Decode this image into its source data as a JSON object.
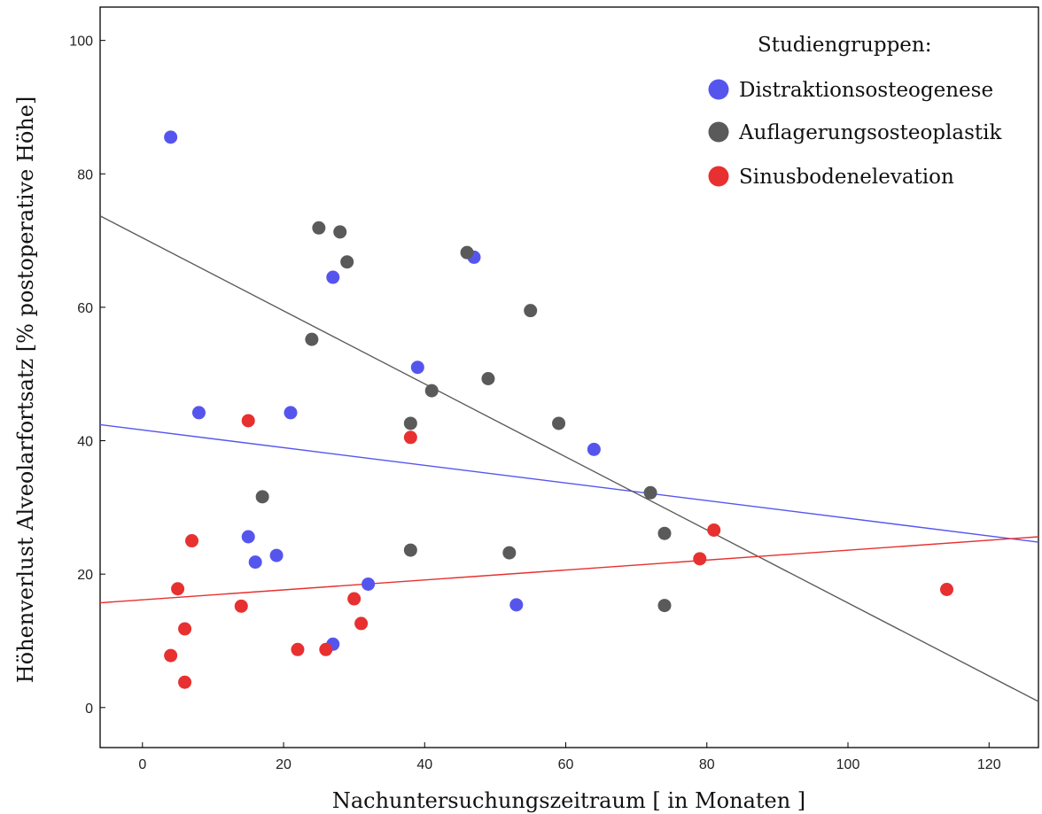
{
  "chart_data": {
    "type": "scatter",
    "title": "",
    "xlabel": "Nachuntersuchungszeitraum [ in Monaten ]",
    "ylabel": "Höhenverlust Alveolarfortsatz [% postoperative Höhe]",
    "xlim": [
      -6,
      127
    ],
    "ylim": [
      -6,
      105
    ],
    "xticks": [
      0,
      20,
      40,
      60,
      80,
      100,
      120
    ],
    "yticks": [
      0,
      20,
      40,
      60,
      80,
      100
    ],
    "xtick_labels": [
      "0",
      "20",
      "40",
      "60",
      "80",
      "100",
      "120"
    ],
    "ytick_labels": [
      "0",
      "20",
      "40",
      "60",
      "80",
      "100"
    ],
    "grid": false,
    "legend": {
      "title": "Studiengruppen:",
      "position": "top-right"
    },
    "series": [
      {
        "name": "Distraktionsosteogenese",
        "color": "#5555ee",
        "points": [
          [
            4,
            85.5
          ],
          [
            8,
            44.2
          ],
          [
            15,
            25.6
          ],
          [
            16,
            21.8
          ],
          [
            19,
            22.8
          ],
          [
            21,
            44.2
          ],
          [
            27,
            64.5
          ],
          [
            27,
            9.5
          ],
          [
            32,
            18.5
          ],
          [
            39,
            51
          ],
          [
            47,
            67.5
          ],
          [
            53,
            15.4
          ],
          [
            64,
            38.7
          ]
        ],
        "fit_line": [
          [
            -6,
            42.4
          ],
          [
            127,
            24.8
          ]
        ]
      },
      {
        "name": "Auflagerungsosteoplastik",
        "color": "#5a5a5a",
        "points": [
          [
            17,
            31.6
          ],
          [
            24,
            55.2
          ],
          [
            25,
            71.9
          ],
          [
            28,
            71.3
          ],
          [
            29,
            66.8
          ],
          [
            38,
            42.6
          ],
          [
            38,
            23.6
          ],
          [
            41,
            47.5
          ],
          [
            46,
            68.2
          ],
          [
            49,
            49.3
          ],
          [
            52,
            23.2
          ],
          [
            55,
            59.5
          ],
          [
            59,
            42.6
          ],
          [
            72,
            32.2
          ],
          [
            74,
            26.1
          ],
          [
            74,
            15.3
          ]
        ],
        "fit_line": [
          [
            -6,
            73.7
          ],
          [
            127,
            0.9
          ]
        ]
      },
      {
        "name": "Sinusbodenelevation",
        "color": "#e83030",
        "points": [
          [
            4,
            7.8
          ],
          [
            5,
            17.8
          ],
          [
            6,
            11.8
          ],
          [
            6,
            3.8
          ],
          [
            7,
            25
          ],
          [
            14,
            15.2
          ],
          [
            15,
            43
          ],
          [
            22,
            8.7
          ],
          [
            26,
            8.7
          ],
          [
            30,
            16.3
          ],
          [
            31,
            12.6
          ],
          [
            38,
            40.5
          ],
          [
            79,
            22.3
          ],
          [
            81,
            26.6
          ],
          [
            114,
            17.7
          ]
        ],
        "fit_line": [
          [
            -6,
            15.7
          ],
          [
            127,
            25.6
          ]
        ]
      }
    ]
  }
}
